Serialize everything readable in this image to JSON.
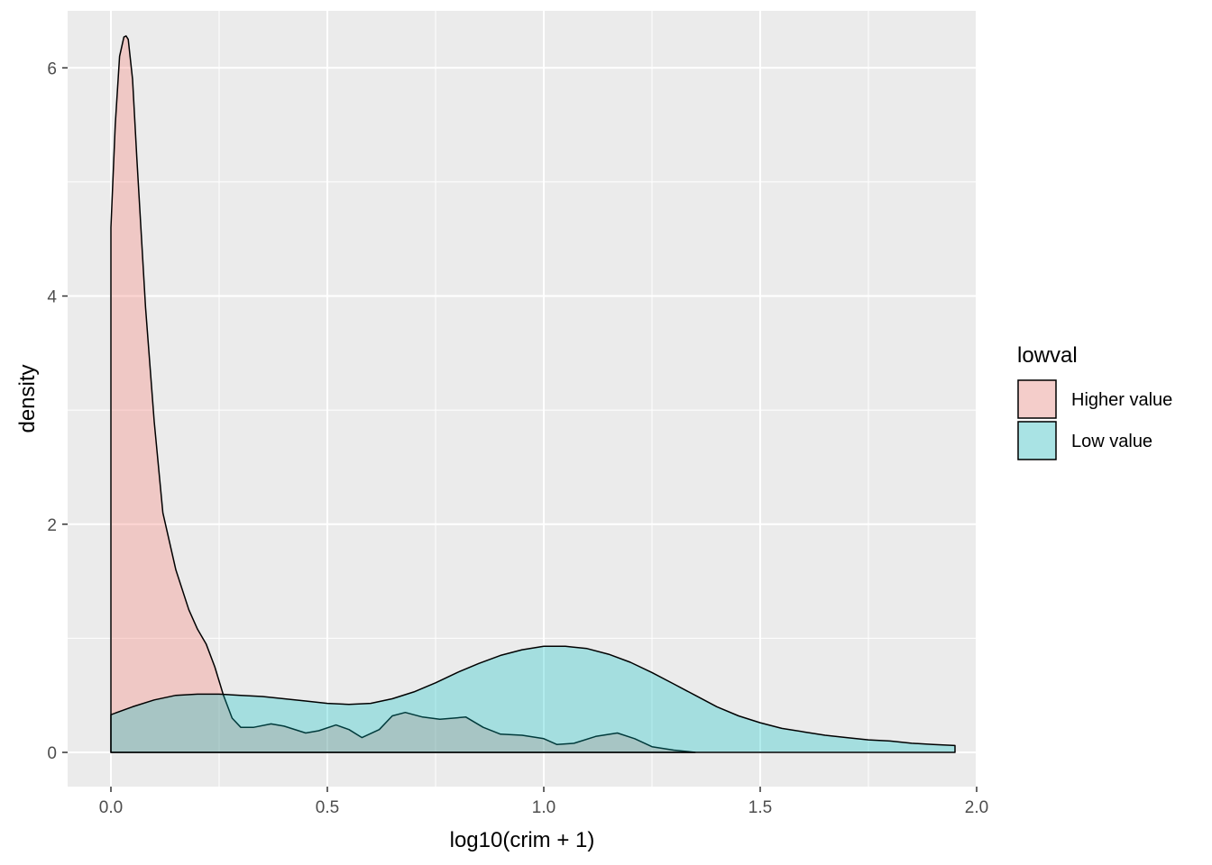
{
  "chart_data": {
    "type": "area",
    "xlabel": "log10(crim + 1)",
    "ylabel": "density",
    "xlim": [
      -0.1,
      2.0
    ],
    "ylim": [
      -0.3,
      6.5
    ],
    "x_ticks": [
      0.0,
      0.5,
      1.0,
      1.5,
      2.0
    ],
    "x_tick_labels": [
      "0.0",
      "0.5",
      "1.0",
      "1.5",
      "2.0"
    ],
    "y_ticks": [
      0,
      2,
      4,
      6
    ],
    "y_tick_labels": [
      "0",
      "2",
      "4",
      "6"
    ],
    "grid": true,
    "legend": {
      "title": "lowval",
      "position": "right"
    },
    "series": [
      {
        "name": "Higher value",
        "color": "#F8766D",
        "fill_opacity": 0.3,
        "x": [
          0.0,
          0.01,
          0.02,
          0.03,
          0.035,
          0.04,
          0.05,
          0.06,
          0.08,
          0.1,
          0.12,
          0.15,
          0.18,
          0.2,
          0.22,
          0.24,
          0.26,
          0.28,
          0.3,
          0.33,
          0.37,
          0.4,
          0.45,
          0.48,
          0.52,
          0.55,
          0.58,
          0.62,
          0.65,
          0.68,
          0.72,
          0.76,
          0.82,
          0.86,
          0.9,
          0.95,
          1.0,
          1.03,
          1.07,
          1.12,
          1.17,
          1.21,
          1.25,
          1.3,
          1.35
        ],
        "y": [
          4.6,
          5.5,
          6.1,
          6.27,
          6.28,
          6.25,
          5.9,
          5.2,
          3.9,
          2.9,
          2.1,
          1.6,
          1.25,
          1.08,
          0.95,
          0.75,
          0.5,
          0.3,
          0.22,
          0.22,
          0.25,
          0.23,
          0.17,
          0.19,
          0.24,
          0.2,
          0.13,
          0.2,
          0.32,
          0.35,
          0.31,
          0.29,
          0.31,
          0.22,
          0.16,
          0.15,
          0.12,
          0.07,
          0.08,
          0.14,
          0.17,
          0.12,
          0.05,
          0.02,
          0.0
        ]
      },
      {
        "name": "Low value",
        "color": "#00BFC4",
        "fill_opacity": 0.3,
        "x": [
          0.0,
          0.05,
          0.1,
          0.15,
          0.2,
          0.25,
          0.3,
          0.35,
          0.4,
          0.45,
          0.5,
          0.55,
          0.6,
          0.65,
          0.7,
          0.75,
          0.8,
          0.85,
          0.9,
          0.95,
          1.0,
          1.05,
          1.1,
          1.15,
          1.2,
          1.25,
          1.3,
          1.35,
          1.4,
          1.45,
          1.5,
          1.55,
          1.6,
          1.65,
          1.7,
          1.75,
          1.8,
          1.85,
          1.9,
          1.95
        ],
        "y": [
          0.33,
          0.4,
          0.46,
          0.5,
          0.51,
          0.51,
          0.5,
          0.49,
          0.47,
          0.45,
          0.43,
          0.42,
          0.43,
          0.47,
          0.53,
          0.61,
          0.7,
          0.78,
          0.85,
          0.9,
          0.93,
          0.93,
          0.91,
          0.86,
          0.79,
          0.7,
          0.6,
          0.5,
          0.4,
          0.32,
          0.26,
          0.21,
          0.18,
          0.15,
          0.13,
          0.11,
          0.1,
          0.08,
          0.07,
          0.06
        ]
      }
    ]
  }
}
